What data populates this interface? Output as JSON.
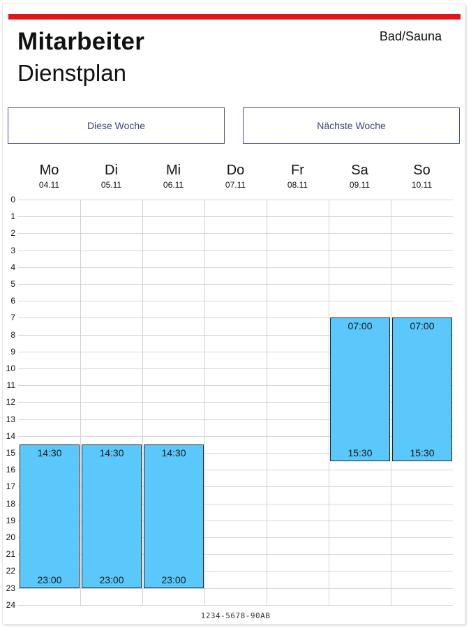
{
  "header": {
    "title": "Mitarbeiter",
    "subtitle": "Dienstplan",
    "location": "Bad/Sauna",
    "accent_color": "#e4141b"
  },
  "nav": {
    "this_week": "Diese Woche",
    "next_week": "Nächste Woche"
  },
  "days": [
    {
      "name": "Mo",
      "date": "04.11"
    },
    {
      "name": "Di",
      "date": "05.11"
    },
    {
      "name": "Mi",
      "date": "06.11"
    },
    {
      "name": "Do",
      "date": "07.11"
    },
    {
      "name": "Fr",
      "date": "08.11"
    },
    {
      "name": "Sa",
      "date": "09.11"
    },
    {
      "name": "So",
      "date": "10.11"
    }
  ],
  "hours": [
    "0",
    "1",
    "2",
    "3",
    "4",
    "5",
    "6",
    "7",
    "8",
    "9",
    "10",
    "11",
    "12",
    "13",
    "14",
    "15",
    "16",
    "17",
    "18",
    "19",
    "20",
    "21",
    "22",
    "23",
    "24"
  ],
  "shifts": [
    {
      "day": 0,
      "start": "14:30",
      "end": "23:00"
    },
    {
      "day": 1,
      "start": "14:30",
      "end": "23:00"
    },
    {
      "day": 2,
      "start": "14:30",
      "end": "23:00"
    },
    {
      "day": 5,
      "start": "07:00",
      "end": "15:30"
    },
    {
      "day": 6,
      "start": "07:00",
      "end": "15:30"
    }
  ],
  "shift_color": "#5ac8fa",
  "footer": {
    "id": "1234-5678-90AB"
  }
}
